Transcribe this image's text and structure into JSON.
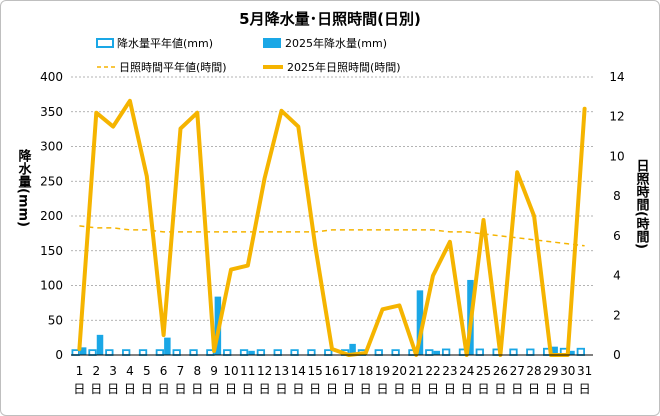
{
  "chart_data": {
    "type": "bar+line",
    "title": "5月降水量･日照時間(日別)",
    "ylabel_left": "降水量(mm)",
    "ylabel_right": "日照時間(時間)",
    "ylim_left": [
      0,
      400
    ],
    "yticks_left": [
      "0",
      "50",
      "100",
      "150",
      "200",
      "250",
      "300",
      "350",
      "400"
    ],
    "ylim_right": [
      0,
      14
    ],
    "yticks_right": [
      "0",
      "2",
      "4",
      "6",
      "8",
      "10",
      "12",
      "14"
    ],
    "categories": [
      "1",
      "2",
      "3",
      "4",
      "5",
      "6",
      "7",
      "8",
      "9",
      "10",
      "11",
      "12",
      "13",
      "14",
      "15",
      "16",
      "17",
      "18",
      "19",
      "20",
      "21",
      "22",
      "23",
      "24",
      "25",
      "26",
      "27",
      "28",
      "29",
      "30",
      "31"
    ],
    "day_suffix": "日",
    "legend": {
      "precip_normal": "降水量平年値(mm)",
      "precip_2025": "2025年降水量(mm)",
      "sunshine_normal": "日照時間平年値(時間)",
      "sunshine_2025": "2025年日照時間(時間)"
    },
    "series": [
      {
        "name": "降水量平年値(mm)",
        "type": "bar",
        "axis": "left",
        "color": "#1aa7e6",
        "style": "outline",
        "values": [
          7,
          7,
          7,
          7,
          7,
          7,
          7,
          7,
          7,
          7,
          7,
          7,
          7,
          7,
          7,
          7,
          7,
          7,
          7,
          7,
          7,
          7,
          8,
          8,
          8,
          8,
          8,
          8,
          9,
          9,
          9
        ]
      },
      {
        "name": "2025年降水量(mm)",
        "type": "bar",
        "axis": "left",
        "color": "#1aa7e6",
        "style": "solid",
        "values": [
          11,
          29,
          0,
          0,
          0,
          25,
          0,
          0,
          84,
          0,
          6,
          0,
          0,
          0,
          0,
          0,
          16,
          0,
          0,
          0,
          93,
          6,
          0,
          108,
          0,
          0,
          0,
          0,
          12,
          6,
          0
        ]
      },
      {
        "name": "日照時間平年値(時間)",
        "type": "line",
        "axis": "right",
        "color": "#f5b400",
        "style": "dashed",
        "values": [
          6.5,
          6.4,
          6.4,
          6.3,
          6.3,
          6.2,
          6.2,
          6.2,
          6.2,
          6.2,
          6.2,
          6.2,
          6.2,
          6.2,
          6.2,
          6.3,
          6.3,
          6.3,
          6.3,
          6.3,
          6.3,
          6.3,
          6.2,
          6.2,
          6.1,
          6.0,
          5.9,
          5.8,
          5.7,
          5.6,
          5.5
        ]
      },
      {
        "name": "2025年日照時間(時間)",
        "type": "line",
        "axis": "right",
        "color": "#f5b400",
        "style": "solid",
        "values": [
          0.3,
          12.2,
          11.5,
          12.8,
          9.0,
          1.0,
          11.4,
          12.2,
          0.2,
          4.3,
          4.5,
          8.9,
          12.3,
          11.5,
          5.5,
          0.3,
          0.0,
          0.1,
          2.3,
          2.5,
          0.0,
          4.0,
          5.7,
          0.0,
          6.8,
          0.0,
          9.2,
          7.0,
          0.0,
          0.0,
          12.4
        ]
      }
    ],
    "grid": "horizontal-dashed",
    "legend_position": "top"
  }
}
